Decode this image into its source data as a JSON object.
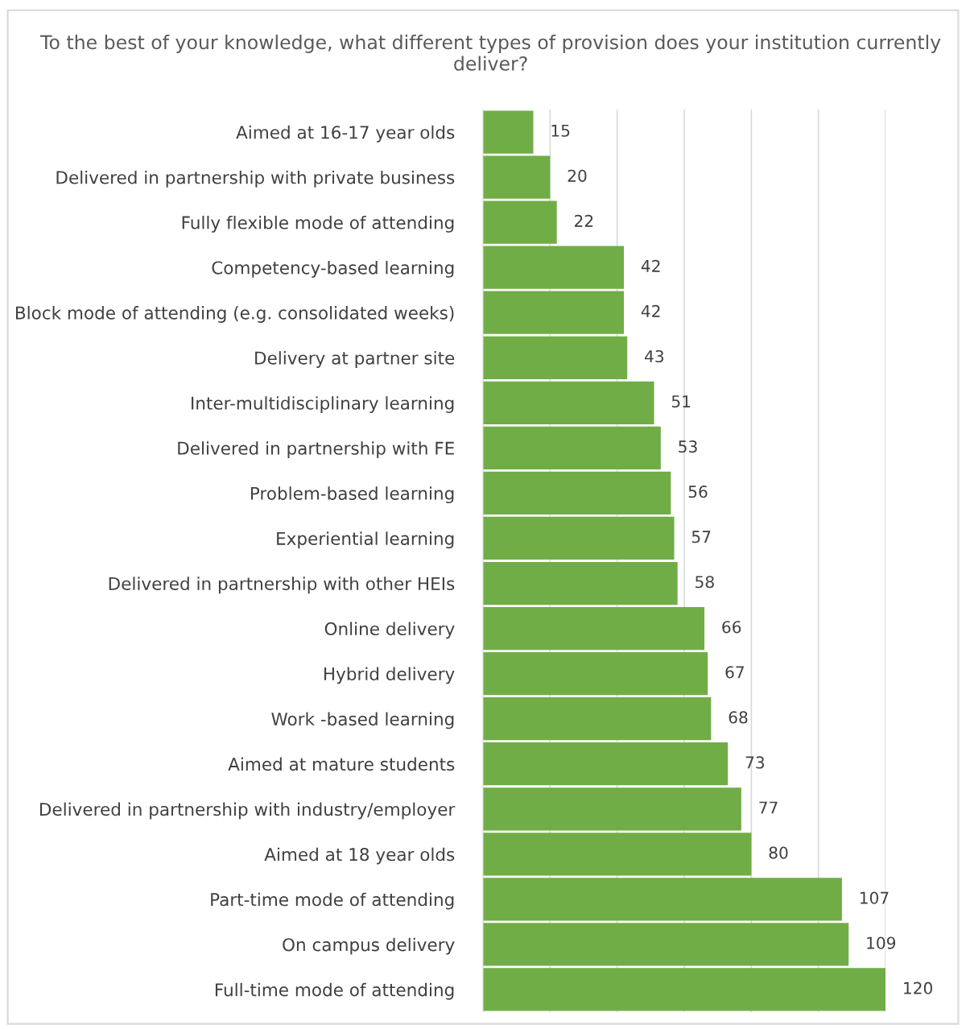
{
  "chart_data": {
    "type": "bar",
    "orientation": "horizontal",
    "title": "To the best of your knowledge, what different types of provision does your institution currently deliver?",
    "categories": [
      "Aimed at 16-17 year olds",
      "Delivered in partnership with private business",
      "Fully flexible mode of attending",
      "Competency-based learning",
      "Block mode of attending (e.g. consolidated weeks)",
      "Delivery at partner site",
      "Inter-multidisciplinary learning",
      "Delivered in partnership with FE",
      "Problem-based learning",
      "Experiential learning",
      "Delivered in partnership with other HEIs",
      "Online delivery",
      "Hybrid delivery",
      "Work -based learning",
      "Aimed at mature students",
      "Delivered in partnership with industry/employer",
      "Aimed at 18 year olds",
      "Part-time mode of attending",
      "On campus delivery",
      "Full-time mode of attending"
    ],
    "values": [
      15,
      20,
      22,
      42,
      42,
      43,
      51,
      53,
      56,
      57,
      58,
      66,
      67,
      68,
      73,
      77,
      80,
      107,
      109,
      120
    ],
    "color": "#70ad47",
    "xlim": [
      0,
      120
    ],
    "xticks": [
      {
        "value": 0,
        "label": null
      },
      {
        "value": 20,
        "label": null
      },
      {
        "value": 40,
        "label": null
      },
      {
        "value": 60,
        "label": null
      },
      {
        "value": 80,
        "label": null
      },
      {
        "value": 100,
        "label": null
      },
      {
        "value": 120,
        "label": null
      }
    ],
    "grid": "x",
    "tick_labels": "y",
    "data_labels": true,
    "legend": false
  }
}
